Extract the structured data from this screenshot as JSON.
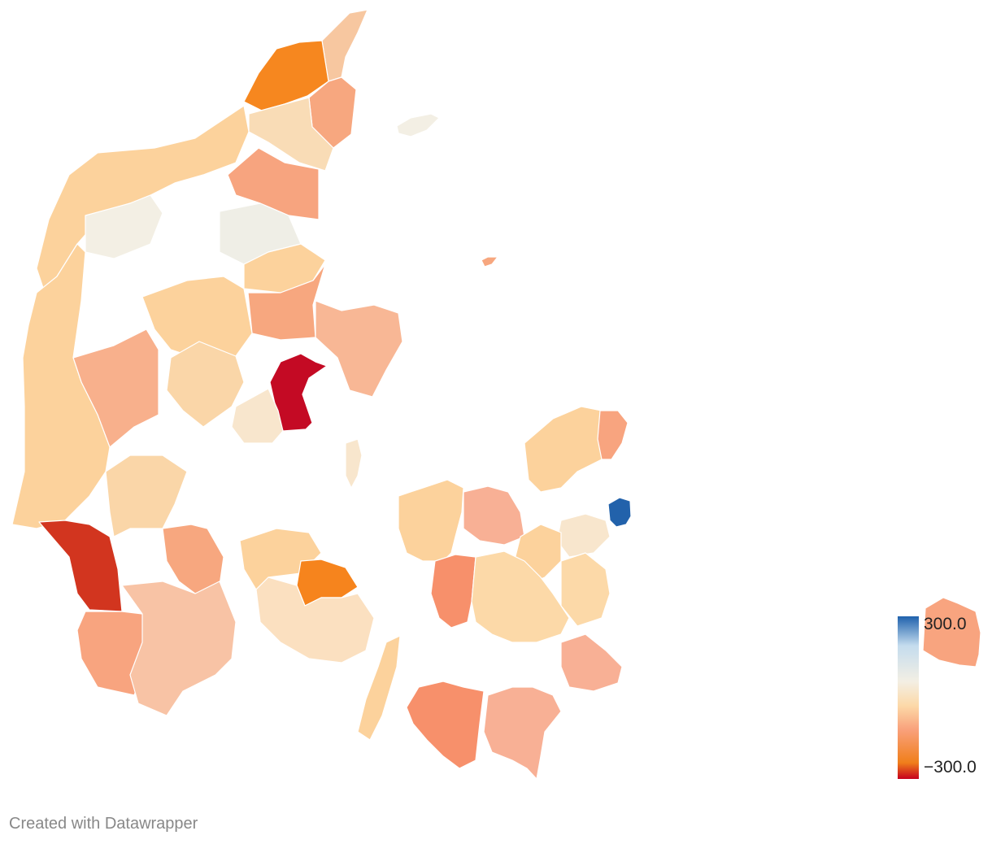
{
  "map": {
    "type": "choropleth",
    "legend": {
      "max_label": "300.0",
      "min_label": "−300.0",
      "max_value": 300,
      "min_value": -300,
      "stops": [
        "#c6001d",
        "#f07f1b",
        "#f9a07a",
        "#fcd9a8",
        "#f3efe4",
        "#c4dcee",
        "#1f62ad"
      ]
    },
    "regions": [
      {
        "id": "nordjylland-tip",
        "color": "#f7c7a0"
      },
      {
        "id": "north-west",
        "color": "#f6871f"
      },
      {
        "id": "north-east-coast",
        "color": "#f7a77f"
      },
      {
        "id": "vendsyssel",
        "color": "#f9dcb6"
      },
      {
        "id": "thisted-coast",
        "color": "#fcd29c"
      },
      {
        "id": "limfjord-island",
        "color": "#f3efe4"
      },
      {
        "id": "himmerland",
        "color": "#f7a47f"
      },
      {
        "id": "aalborg-south",
        "color": "#efeee6"
      },
      {
        "id": "mariagerfjord",
        "color": "#fcd29c"
      },
      {
        "id": "randers",
        "color": "#f7a77f"
      },
      {
        "id": "djursland",
        "color": "#f8b795"
      },
      {
        "id": "viborg",
        "color": "#fcd29c"
      },
      {
        "id": "herning",
        "color": "#f8b08c"
      },
      {
        "id": "silkeborg",
        "color": "#fad6a8"
      },
      {
        "id": "aarhus",
        "color": "#c40a24"
      },
      {
        "id": "skanderborg",
        "color": "#f8e6cd"
      },
      {
        "id": "west-coast",
        "color": "#fcd29c"
      },
      {
        "id": "esbjerg",
        "color": "#d2351f"
      },
      {
        "id": "esbjerg-south",
        "color": "#f8a47f"
      },
      {
        "id": "vejen",
        "color": "#fad6a8"
      },
      {
        "id": "kolding",
        "color": "#f7a77f"
      },
      {
        "id": "sonderjylland",
        "color": "#f8c3a5"
      },
      {
        "id": "fyn-west",
        "color": "#fcd29c"
      },
      {
        "id": "odense",
        "color": "#f6841d"
      },
      {
        "id": "fyn-south",
        "color": "#fbe0c0"
      },
      {
        "id": "langeland",
        "color": "#fcd29c"
      },
      {
        "id": "sjaelland-west",
        "color": "#fcd29c"
      },
      {
        "id": "holbaek",
        "color": "#f8b095"
      },
      {
        "id": "sjaelland-north",
        "color": "#fcd29c"
      },
      {
        "id": "north-coast-helsingor",
        "color": "#f8a47f"
      },
      {
        "id": "copenhagen",
        "color": "#2262ab"
      },
      {
        "id": "koge",
        "color": "#f8e6cd"
      },
      {
        "id": "ringsted",
        "color": "#fcd29c"
      },
      {
        "id": "slagelse",
        "color": "#f7906b"
      },
      {
        "id": "naestved",
        "color": "#fcd9a8"
      },
      {
        "id": "stevns",
        "color": "#fcd9a8"
      },
      {
        "id": "mon",
        "color": "#f8b095"
      },
      {
        "id": "lolland",
        "color": "#f7906b"
      },
      {
        "id": "falster",
        "color": "#f8b095"
      },
      {
        "id": "bornholm",
        "color": "#f8a47f"
      },
      {
        "id": "laeso",
        "color": "#f3efe4"
      },
      {
        "id": "anholt",
        "color": "#f7a77f"
      },
      {
        "id": "samso",
        "color": "#f8e6cd"
      }
    ]
  },
  "footer": {
    "credit": "Created with Datawrapper"
  }
}
